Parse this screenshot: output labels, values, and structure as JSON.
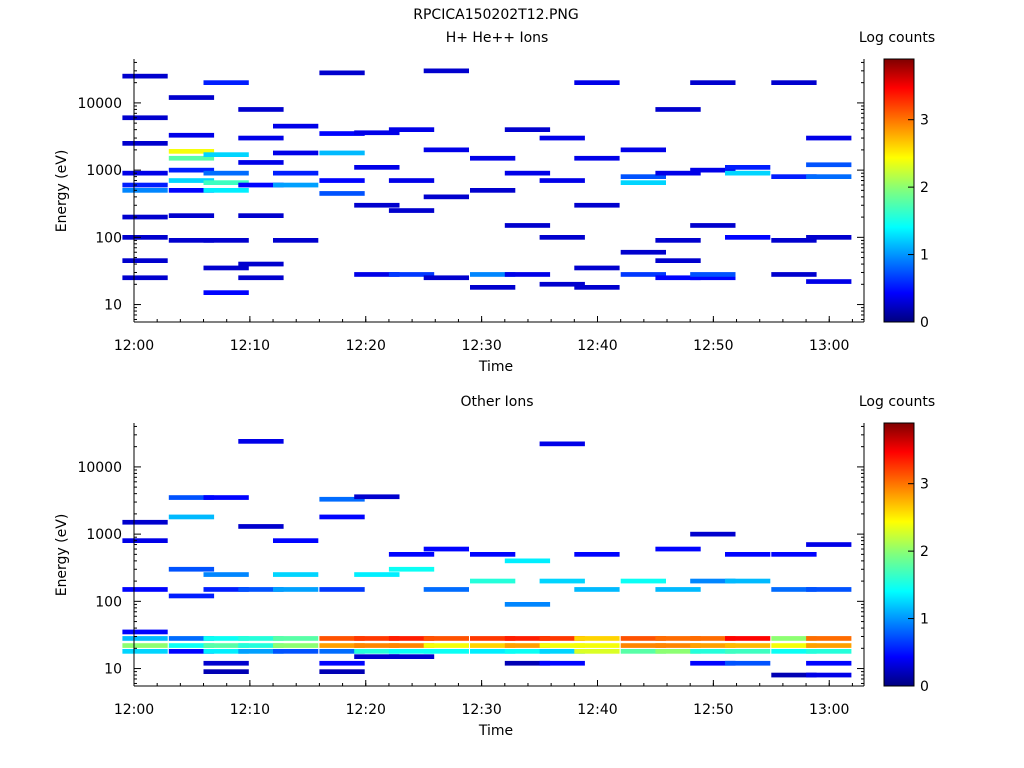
{
  "figure_title": "RPCICA150202T12.PNG",
  "colors": {
    "axes": "#000000",
    "background": "#ffffff",
    "colormap": "jet"
  },
  "chart_data": [
    {
      "type": "heatmap",
      "title": "H+ He++ Ions",
      "xlabel": "Time",
      "ylabel": "Energy (eV)",
      "x_ticks": [
        "12:00",
        "12:10",
        "12:20",
        "12:30",
        "12:40",
        "12:50",
        "13:00"
      ],
      "y_scale": "log",
      "y_ticks": [
        "10",
        "100",
        "1000",
        "10000"
      ],
      "ylim": [
        5.5,
        45000
      ],
      "xlim": [
        "12:00",
        "13:03"
      ],
      "colorbar": {
        "label": "Log counts",
        "ticks": [
          "0",
          "1",
          "2",
          "3"
        ],
        "range": [
          0,
          3.9
        ]
      },
      "time_columns": [
        "12:01",
        "12:05",
        "12:08",
        "12:11",
        "12:14",
        "12:18",
        "12:21",
        "12:24",
        "12:27",
        "12:31",
        "12:34",
        "12:37",
        "12:40",
        "12:44",
        "12:47",
        "12:50",
        "12:53",
        "12:57",
        "13:00"
      ],
      "cells": [
        {
          "t": 0,
          "e": 45,
          "lc": 0.3
        },
        {
          "t": 0,
          "e": 25,
          "lc": 0.3
        },
        {
          "t": 0,
          "e": 100,
          "lc": 0.3
        },
        {
          "t": 0,
          "e": 200,
          "lc": 0.3
        },
        {
          "t": 0,
          "e": 500,
          "lc": 1.0
        },
        {
          "t": 0,
          "e": 600,
          "lc": 0.6
        },
        {
          "t": 0,
          "e": 900,
          "lc": 0.4
        },
        {
          "t": 0,
          "e": 2500,
          "lc": 0.3
        },
        {
          "t": 0,
          "e": 6000,
          "lc": 0.3
        },
        {
          "t": 0,
          "e": 25000,
          "lc": 0.3
        },
        {
          "t": 1,
          "e": 90,
          "lc": 0.3
        },
        {
          "t": 1,
          "e": 210,
          "lc": 0.3
        },
        {
          "t": 1,
          "e": 500,
          "lc": 0.5
        },
        {
          "t": 1,
          "e": 700,
          "lc": 1.3
        },
        {
          "t": 1,
          "e": 1000,
          "lc": 0.6
        },
        {
          "t": 1,
          "e": 1500,
          "lc": 1.8
        },
        {
          "t": 1,
          "e": 1900,
          "lc": 2.4
        },
        {
          "t": 1,
          "e": 3300,
          "lc": 0.4
        },
        {
          "t": 1,
          "e": 12000,
          "lc": 0.3
        },
        {
          "t": 2,
          "e": 15,
          "lc": 0.5
        },
        {
          "t": 2,
          "e": 35,
          "lc": 0.3
        },
        {
          "t": 2,
          "e": 90,
          "lc": 0.3
        },
        {
          "t": 2,
          "e": 500,
          "lc": 1.4
        },
        {
          "t": 2,
          "e": 650,
          "lc": 1.7
        },
        {
          "t": 2,
          "e": 900,
          "lc": 0.9
        },
        {
          "t": 2,
          "e": 1700,
          "lc": 1.3
        },
        {
          "t": 2,
          "e": 20000,
          "lc": 0.6
        },
        {
          "t": 3,
          "e": 25,
          "lc": 0.3
        },
        {
          "t": 3,
          "e": 40,
          "lc": 0.3
        },
        {
          "t": 3,
          "e": 210,
          "lc": 0.3
        },
        {
          "t": 3,
          "e": 600,
          "lc": 0.5
        },
        {
          "t": 3,
          "e": 1300,
          "lc": 0.4
        },
        {
          "t": 3,
          "e": 3000,
          "lc": 0.4
        },
        {
          "t": 3,
          "e": 8000,
          "lc": 0.3
        },
        {
          "t": 4,
          "e": 90,
          "lc": 0.3
        },
        {
          "t": 4,
          "e": 600,
          "lc": 1.1
        },
        {
          "t": 4,
          "e": 900,
          "lc": 0.6
        },
        {
          "t": 4,
          "e": 1800,
          "lc": 0.4
        },
        {
          "t": 4,
          "e": 4500,
          "lc": 0.4
        },
        {
          "t": 5,
          "e": 450,
          "lc": 0.8
        },
        {
          "t": 5,
          "e": 700,
          "lc": 0.5
        },
        {
          "t": 5,
          "e": 1800,
          "lc": 1.2
        },
        {
          "t": 5,
          "e": 3500,
          "lc": 0.5
        },
        {
          "t": 5,
          "e": 28000,
          "lc": 0.3
        },
        {
          "t": 6,
          "e": 28,
          "lc": 0.4
        },
        {
          "t": 6,
          "e": 300,
          "lc": 0.3
        },
        {
          "t": 6,
          "e": 1100,
          "lc": 0.4
        },
        {
          "t": 6,
          "e": 3600,
          "lc": 0.4
        },
        {
          "t": 7,
          "e": 28,
          "lc": 0.7
        },
        {
          "t": 7,
          "e": 250,
          "lc": 0.3
        },
        {
          "t": 7,
          "e": 700,
          "lc": 0.4
        },
        {
          "t": 7,
          "e": 4000,
          "lc": 0.4
        },
        {
          "t": 8,
          "e": 25,
          "lc": 0.3
        },
        {
          "t": 8,
          "e": 400,
          "lc": 0.3
        },
        {
          "t": 8,
          "e": 2000,
          "lc": 0.4
        },
        {
          "t": 8,
          "e": 30000,
          "lc": 0.3
        },
        {
          "t": 9,
          "e": 18,
          "lc": 0.3
        },
        {
          "t": 9,
          "e": 28,
          "lc": 1.0
        },
        {
          "t": 9,
          "e": 500,
          "lc": 0.3
        },
        {
          "t": 9,
          "e": 1500,
          "lc": 0.4
        },
        {
          "t": 10,
          "e": 28,
          "lc": 0.4
        },
        {
          "t": 10,
          "e": 150,
          "lc": 0.3
        },
        {
          "t": 10,
          "e": 900,
          "lc": 0.4
        },
        {
          "t": 10,
          "e": 4000,
          "lc": 0.3
        },
        {
          "t": 11,
          "e": 20,
          "lc": 0.3
        },
        {
          "t": 11,
          "e": 100,
          "lc": 0.3
        },
        {
          "t": 11,
          "e": 700,
          "lc": 0.4
        },
        {
          "t": 11,
          "e": 3000,
          "lc": 0.4
        },
        {
          "t": 12,
          "e": 18,
          "lc": 0.3
        },
        {
          "t": 12,
          "e": 35,
          "lc": 0.3
        },
        {
          "t": 12,
          "e": 300,
          "lc": 0.3
        },
        {
          "t": 12,
          "e": 1500,
          "lc": 0.4
        },
        {
          "t": 12,
          "e": 20000,
          "lc": 0.4
        },
        {
          "t": 13,
          "e": 28,
          "lc": 0.7
        },
        {
          "t": 13,
          "e": 60,
          "lc": 0.3
        },
        {
          "t": 13,
          "e": 650,
          "lc": 1.3
        },
        {
          "t": 13,
          "e": 800,
          "lc": 0.8
        },
        {
          "t": 13,
          "e": 2000,
          "lc": 0.4
        },
        {
          "t": 14,
          "e": 25,
          "lc": 0.5
        },
        {
          "t": 14,
          "e": 45,
          "lc": 0.3
        },
        {
          "t": 14,
          "e": 90,
          "lc": 0.3
        },
        {
          "t": 14,
          "e": 900,
          "lc": 0.4
        },
        {
          "t": 14,
          "e": 8000,
          "lc": 0.3
        },
        {
          "t": 15,
          "e": 25,
          "lc": 0.5
        },
        {
          "t": 15,
          "e": 28,
          "lc": 0.8
        },
        {
          "t": 15,
          "e": 150,
          "lc": 0.3
        },
        {
          "t": 15,
          "e": 1000,
          "lc": 0.4
        },
        {
          "t": 15,
          "e": 20000,
          "lc": 0.3
        },
        {
          "t": 16,
          "e": 100,
          "lc": 0.5
        },
        {
          "t": 16,
          "e": 900,
          "lc": 1.3
        },
        {
          "t": 16,
          "e": 1100,
          "lc": 0.6
        },
        {
          "t": 17,
          "e": 28,
          "lc": 0.3
        },
        {
          "t": 17,
          "e": 90,
          "lc": 0.3
        },
        {
          "t": 17,
          "e": 800,
          "lc": 0.6
        },
        {
          "t": 17,
          "e": 20000,
          "lc": 0.3
        },
        {
          "t": 18,
          "e": 22,
          "lc": 0.4
        },
        {
          "t": 18,
          "e": 100,
          "lc": 0.3
        },
        {
          "t": 18,
          "e": 800,
          "lc": 0.9
        },
        {
          "t": 18,
          "e": 1200,
          "lc": 0.8
        },
        {
          "t": 18,
          "e": 3000,
          "lc": 0.4
        }
      ]
    },
    {
      "type": "heatmap",
      "title": "Other Ions",
      "xlabel": "Time",
      "ylabel": "Energy (eV)",
      "x_ticks": [
        "12:00",
        "12:10",
        "12:20",
        "12:30",
        "12:40",
        "12:50",
        "13:00"
      ],
      "y_scale": "log",
      "y_ticks": [
        "10",
        "100",
        "1000",
        "10000"
      ],
      "ylim": [
        5.5,
        45000
      ],
      "xlim": [
        "12:00",
        "13:03"
      ],
      "colorbar": {
        "label": "Log counts",
        "ticks": [
          "0",
          "1",
          "2",
          "3"
        ],
        "range": [
          0,
          3.9
        ]
      },
      "time_columns": [
        "12:01",
        "12:05",
        "12:08",
        "12:11",
        "12:14",
        "12:18",
        "12:21",
        "12:24",
        "12:27",
        "12:31",
        "12:34",
        "12:37",
        "12:40",
        "12:44",
        "12:47",
        "12:50",
        "12:53",
        "12:57",
        "13:00"
      ],
      "cells": [
        {
          "t": 0,
          "e": 18,
          "lc": 1.3
        },
        {
          "t": 0,
          "e": 22,
          "lc": 2.0
        },
        {
          "t": 0,
          "e": 28,
          "lc": 1.2
        },
        {
          "t": 0,
          "e": 35,
          "lc": 0.5
        },
        {
          "t": 0,
          "e": 150,
          "lc": 0.5
        },
        {
          "t": 0,
          "e": 800,
          "lc": 0.4
        },
        {
          "t": 0,
          "e": 1500,
          "lc": 0.3
        },
        {
          "t": 1,
          "e": 18,
          "lc": 0.5
        },
        {
          "t": 1,
          "e": 22,
          "lc": 1.5
        },
        {
          "t": 1,
          "e": 28,
          "lc": 0.9
        },
        {
          "t": 1,
          "e": 120,
          "lc": 0.6
        },
        {
          "t": 1,
          "e": 300,
          "lc": 0.8
        },
        {
          "t": 1,
          "e": 1800,
          "lc": 1.2
        },
        {
          "t": 1,
          "e": 3500,
          "lc": 0.8
        },
        {
          "t": 2,
          "e": 9,
          "lc": 0.2
        },
        {
          "t": 2,
          "e": 12,
          "lc": 0.3
        },
        {
          "t": 2,
          "e": 18,
          "lc": 1.4
        },
        {
          "t": 2,
          "e": 22,
          "lc": 1.8
        },
        {
          "t": 2,
          "e": 28,
          "lc": 1.5
        },
        {
          "t": 2,
          "e": 150,
          "lc": 0.6
        },
        {
          "t": 2,
          "e": 250,
          "lc": 1.0
        },
        {
          "t": 2,
          "e": 3500,
          "lc": 0.5
        },
        {
          "t": 3,
          "e": 18,
          "lc": 1.1
        },
        {
          "t": 3,
          "e": 22,
          "lc": 1.6
        },
        {
          "t": 3,
          "e": 28,
          "lc": 1.6
        },
        {
          "t": 3,
          "e": 150,
          "lc": 0.8
        },
        {
          "t": 3,
          "e": 1300,
          "lc": 0.3
        },
        {
          "t": 3,
          "e": 24000,
          "lc": 0.4
        },
        {
          "t": 4,
          "e": 18,
          "lc": 0.8
        },
        {
          "t": 4,
          "e": 22,
          "lc": 2.0
        },
        {
          "t": 4,
          "e": 28,
          "lc": 1.8
        },
        {
          "t": 4,
          "e": 150,
          "lc": 1.1
        },
        {
          "t": 4,
          "e": 250,
          "lc": 1.3
        },
        {
          "t": 4,
          "e": 800,
          "lc": 0.5
        },
        {
          "t": 5,
          "e": 9,
          "lc": 0.2
        },
        {
          "t": 5,
          "e": 12,
          "lc": 0.5
        },
        {
          "t": 5,
          "e": 18,
          "lc": 0.9
        },
        {
          "t": 5,
          "e": 22,
          "lc": 2.8
        },
        {
          "t": 5,
          "e": 28,
          "lc": 3.1
        },
        {
          "t": 5,
          "e": 150,
          "lc": 0.7
        },
        {
          "t": 5,
          "e": 1800,
          "lc": 0.5
        },
        {
          "t": 5,
          "e": 3300,
          "lc": 0.9
        },
        {
          "t": 6,
          "e": 15,
          "lc": 0.3
        },
        {
          "t": 6,
          "e": 18,
          "lc": 1.6
        },
        {
          "t": 6,
          "e": 22,
          "lc": 2.9
        },
        {
          "t": 6,
          "e": 28,
          "lc": 3.2
        },
        {
          "t": 6,
          "e": 250,
          "lc": 1.4
        },
        {
          "t": 6,
          "e": 3600,
          "lc": 0.3
        },
        {
          "t": 7,
          "e": 15,
          "lc": 0.3
        },
        {
          "t": 7,
          "e": 18,
          "lc": 1.5
        },
        {
          "t": 7,
          "e": 22,
          "lc": 2.9
        },
        {
          "t": 7,
          "e": 28,
          "lc": 3.3
        },
        {
          "t": 7,
          "e": 300,
          "lc": 1.5
        },
        {
          "t": 7,
          "e": 500,
          "lc": 0.5
        },
        {
          "t": 8,
          "e": 18,
          "lc": 1.5
        },
        {
          "t": 8,
          "e": 22,
          "lc": 2.4
        },
        {
          "t": 8,
          "e": 28,
          "lc": 3.1
        },
        {
          "t": 8,
          "e": 150,
          "lc": 0.9
        },
        {
          "t": 8,
          "e": 600,
          "lc": 0.5
        },
        {
          "t": 9,
          "e": 18,
          "lc": 1.4
        },
        {
          "t": 9,
          "e": 22,
          "lc": 2.6
        },
        {
          "t": 9,
          "e": 28,
          "lc": 3.2
        },
        {
          "t": 9,
          "e": 200,
          "lc": 1.6
        },
        {
          "t": 9,
          "e": 500,
          "lc": 0.5
        },
        {
          "t": 10,
          "e": 12,
          "lc": 0.2
        },
        {
          "t": 10,
          "e": 18,
          "lc": 1.5
        },
        {
          "t": 10,
          "e": 22,
          "lc": 2.8
        },
        {
          "t": 10,
          "e": 28,
          "lc": 3.3
        },
        {
          "t": 10,
          "e": 90,
          "lc": 1.0
        },
        {
          "t": 10,
          "e": 400,
          "lc": 1.4
        },
        {
          "t": 11,
          "e": 12,
          "lc": 0.5
        },
        {
          "t": 11,
          "e": 18,
          "lc": 1.3
        },
        {
          "t": 11,
          "e": 22,
          "lc": 2.4
        },
        {
          "t": 11,
          "e": 28,
          "lc": 3.2
        },
        {
          "t": 11,
          "e": 200,
          "lc": 1.3
        },
        {
          "t": 11,
          "e": 22000,
          "lc": 0.4
        },
        {
          "t": 12,
          "e": 18,
          "lc": 2.3
        },
        {
          "t": 12,
          "e": 22,
          "lc": 2.4
        },
        {
          "t": 12,
          "e": 28,
          "lc": 2.6
        },
        {
          "t": 12,
          "e": 150,
          "lc": 1.2
        },
        {
          "t": 12,
          "e": 500,
          "lc": 0.5
        },
        {
          "t": 13,
          "e": 18,
          "lc": 1.8
        },
        {
          "t": 13,
          "e": 22,
          "lc": 2.9
        },
        {
          "t": 13,
          "e": 28,
          "lc": 3.1
        },
        {
          "t": 13,
          "e": 200,
          "lc": 1.5
        },
        {
          "t": 14,
          "e": 18,
          "lc": 2.0
        },
        {
          "t": 14,
          "e": 22,
          "lc": 2.9
        },
        {
          "t": 14,
          "e": 28,
          "lc": 3.0
        },
        {
          "t": 14,
          "e": 150,
          "lc": 1.2
        },
        {
          "t": 14,
          "e": 600,
          "lc": 0.5
        },
        {
          "t": 15,
          "e": 12,
          "lc": 0.5
        },
        {
          "t": 15,
          "e": 18,
          "lc": 1.6
        },
        {
          "t": 15,
          "e": 22,
          "lc": 2.8
        },
        {
          "t": 15,
          "e": 28,
          "lc": 3.0
        },
        {
          "t": 15,
          "e": 200,
          "lc": 1.0
        },
        {
          "t": 15,
          "e": 1000,
          "lc": 0.3
        },
        {
          "t": 16,
          "e": 12,
          "lc": 0.8
        },
        {
          "t": 16,
          "e": 18,
          "lc": 1.7
        },
        {
          "t": 16,
          "e": 22,
          "lc": 2.7
        },
        {
          "t": 16,
          "e": 28,
          "lc": 3.4
        },
        {
          "t": 16,
          "e": 200,
          "lc": 1.2
        },
        {
          "t": 16,
          "e": 500,
          "lc": 0.5
        },
        {
          "t": 17,
          "e": 8,
          "lc": 0.2
        },
        {
          "t": 17,
          "e": 18,
          "lc": 1.5
        },
        {
          "t": 17,
          "e": 22,
          "lc": 2.4
        },
        {
          "t": 17,
          "e": 28,
          "lc": 2.0
        },
        {
          "t": 17,
          "e": 150,
          "lc": 0.9
        },
        {
          "t": 17,
          "e": 500,
          "lc": 0.5
        },
        {
          "t": 18,
          "e": 8,
          "lc": 0.4
        },
        {
          "t": 18,
          "e": 12,
          "lc": 0.5
        },
        {
          "t": 18,
          "e": 18,
          "lc": 1.6
        },
        {
          "t": 18,
          "e": 22,
          "lc": 2.8
        },
        {
          "t": 18,
          "e": 28,
          "lc": 3.0
        },
        {
          "t": 18,
          "e": 150,
          "lc": 0.8
        },
        {
          "t": 18,
          "e": 700,
          "lc": 0.4
        }
      ]
    }
  ]
}
